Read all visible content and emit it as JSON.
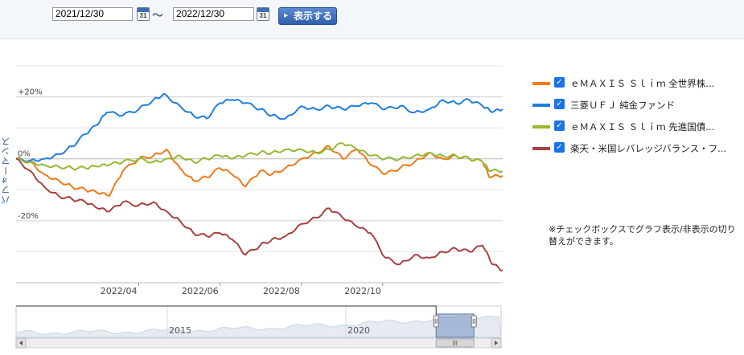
{
  "date_range": {
    "from": "2021/12/30",
    "separator": "～",
    "to": "2022/12/30",
    "calendar_day": "31",
    "show_button": "表示する"
  },
  "legend": {
    "items": [
      {
        "label": "ｅＭＡＸＩＳ Ｓｌｉｍ 全世界株...",
        "color": "#f07a1a"
      },
      {
        "label": "三菱ＵＦＪ 純金ファンド",
        "color": "#1f7ee0"
      },
      {
        "label": "ｅＭＡＸＩＳ Ｓｌｉｍ 先進国債...",
        "color": "#95b832"
      },
      {
        "label": "楽天・米国レバレッジバランス・フ...",
        "color": "#a8423f"
      }
    ]
  },
  "note": "※チェックボックスでグラフ表示/非表示の切り替えができます。",
  "navigator": {
    "year_labels": [
      "2015",
      "2020"
    ],
    "selection_start": 0.866,
    "selection_end": 0.944
  },
  "chart_data": {
    "type": "line",
    "ylabel": "パフォーマンス",
    "ylim": [
      -40,
      30
    ],
    "yticks": [
      {
        "value": 20,
        "label": "+20%"
      },
      {
        "value": 0,
        "label": "0%"
      },
      {
        "value": -20,
        "label": "-20%"
      }
    ],
    "x_start": "2021-12-30",
    "x_end": "2022-12-30",
    "xticks": [
      {
        "date": "2022-04-01",
        "label": "2022/04"
      },
      {
        "date": "2022-06-01",
        "label": "2022/06"
      },
      {
        "date": "2022-08-01",
        "label": "2022/08"
      },
      {
        "date": "2022-10-01",
        "label": "2022/10"
      }
    ],
    "grid": true,
    "legend_position": "right",
    "series": [
      {
        "name": "ｅＭＡＸＩＳ Ｓｌｉｍ 全世界株...",
        "color": "#f07a1a",
        "points": [
          [
            "2021-12-30",
            0
          ],
          [
            "2022-01-10",
            -1
          ],
          [
            "2022-01-20",
            -5
          ],
          [
            "2022-01-31",
            -7
          ],
          [
            "2022-02-10",
            -9
          ],
          [
            "2022-02-20",
            -10
          ],
          [
            "2022-03-01",
            -11
          ],
          [
            "2022-03-10",
            -12
          ],
          [
            "2022-03-20",
            -4
          ],
          [
            "2022-04-01",
            0
          ],
          [
            "2022-04-12",
            1
          ],
          [
            "2022-04-22",
            3
          ],
          [
            "2022-05-02",
            -3
          ],
          [
            "2022-05-12",
            -7
          ],
          [
            "2022-05-22",
            -6
          ],
          [
            "2022-06-01",
            -3
          ],
          [
            "2022-06-10",
            -5
          ],
          [
            "2022-06-20",
            -9
          ],
          [
            "2022-07-01",
            -4
          ],
          [
            "2022-07-10",
            -5
          ],
          [
            "2022-07-20",
            -3
          ],
          [
            "2022-08-01",
            0
          ],
          [
            "2022-08-12",
            2
          ],
          [
            "2022-08-22",
            4
          ],
          [
            "2022-09-01",
            0
          ],
          [
            "2022-09-12",
            3
          ],
          [
            "2022-09-22",
            -2
          ],
          [
            "2022-10-03",
            -5
          ],
          [
            "2022-10-14",
            -3
          ],
          [
            "2022-10-25",
            -1
          ],
          [
            "2022-11-05",
            2
          ],
          [
            "2022-11-15",
            0
          ],
          [
            "2022-11-25",
            1
          ],
          [
            "2022-12-05",
            0
          ],
          [
            "2022-12-15",
            -1
          ],
          [
            "2022-12-20",
            -6
          ],
          [
            "2022-12-30",
            -5.5
          ]
        ]
      },
      {
        "name": "三菱ＵＦＪ 純金ファンド",
        "color": "#1f7ee0",
        "points": [
          [
            "2021-12-30",
            0
          ],
          [
            "2022-01-10",
            -0.5
          ],
          [
            "2022-01-20",
            0
          ],
          [
            "2022-01-31",
            1.5
          ],
          [
            "2022-02-10",
            4
          ],
          [
            "2022-02-20",
            8
          ],
          [
            "2022-03-01",
            11
          ],
          [
            "2022-03-08",
            15
          ],
          [
            "2022-03-20",
            14
          ],
          [
            "2022-04-01",
            16
          ],
          [
            "2022-04-12",
            19
          ],
          [
            "2022-04-20",
            21
          ],
          [
            "2022-05-02",
            17
          ],
          [
            "2022-05-12",
            14
          ],
          [
            "2022-05-22",
            13
          ],
          [
            "2022-06-01",
            18
          ],
          [
            "2022-06-10",
            19
          ],
          [
            "2022-06-20",
            18
          ],
          [
            "2022-07-01",
            16
          ],
          [
            "2022-07-10",
            14
          ],
          [
            "2022-07-20",
            13
          ],
          [
            "2022-08-01",
            17
          ],
          [
            "2022-08-12",
            16
          ],
          [
            "2022-08-22",
            17
          ],
          [
            "2022-09-01",
            16
          ],
          [
            "2022-09-12",
            17
          ],
          [
            "2022-09-22",
            18
          ],
          [
            "2022-10-03",
            16
          ],
          [
            "2022-10-14",
            17
          ],
          [
            "2022-10-25",
            15
          ],
          [
            "2022-11-05",
            16
          ],
          [
            "2022-11-15",
            19
          ],
          [
            "2022-11-25",
            18
          ],
          [
            "2022-12-05",
            19
          ],
          [
            "2022-12-15",
            17
          ],
          [
            "2022-12-22",
            15
          ],
          [
            "2022-12-30",
            16
          ]
        ]
      },
      {
        "name": "ｅＭＡＸＩＳ Ｓｌｉｍ 先進国債...",
        "color": "#95b832",
        "points": [
          [
            "2021-12-30",
            0
          ],
          [
            "2022-01-10",
            -1
          ],
          [
            "2022-01-20",
            -2
          ],
          [
            "2022-01-31",
            -2.5
          ],
          [
            "2022-02-10",
            -3
          ],
          [
            "2022-02-20",
            -3
          ],
          [
            "2022-03-01",
            -2.5
          ],
          [
            "2022-03-10",
            -2
          ],
          [
            "2022-03-20",
            -1
          ],
          [
            "2022-04-01",
            0
          ],
          [
            "2022-04-12",
            -1
          ],
          [
            "2022-04-22",
            0
          ],
          [
            "2022-05-02",
            1
          ],
          [
            "2022-05-12",
            -1
          ],
          [
            "2022-05-22",
            0
          ],
          [
            "2022-06-01",
            1
          ],
          [
            "2022-06-10",
            0
          ],
          [
            "2022-06-20",
            1
          ],
          [
            "2022-07-01",
            2
          ],
          [
            "2022-07-10",
            2
          ],
          [
            "2022-07-20",
            3
          ],
          [
            "2022-08-01",
            3
          ],
          [
            "2022-08-12",
            2
          ],
          [
            "2022-08-22",
            3
          ],
          [
            "2022-09-01",
            5
          ],
          [
            "2022-09-12",
            3
          ],
          [
            "2022-09-22",
            1
          ],
          [
            "2022-10-03",
            0
          ],
          [
            "2022-10-14",
            0
          ],
          [
            "2022-10-25",
            1
          ],
          [
            "2022-11-05",
            2
          ],
          [
            "2022-11-15",
            1
          ],
          [
            "2022-11-25",
            1
          ],
          [
            "2022-12-05",
            0
          ],
          [
            "2022-12-15",
            -1
          ],
          [
            "2022-12-20",
            -4
          ],
          [
            "2022-12-30",
            -4
          ]
        ]
      },
      {
        "name": "楽天・米国レバレッジバランス・フ...",
        "color": "#a8423f",
        "points": [
          [
            "2021-12-30",
            0
          ],
          [
            "2022-01-10",
            -4
          ],
          [
            "2022-01-20",
            -9
          ],
          [
            "2022-01-31",
            -12
          ],
          [
            "2022-02-10",
            -13
          ],
          [
            "2022-02-20",
            -14
          ],
          [
            "2022-03-01",
            -16
          ],
          [
            "2022-03-10",
            -17
          ],
          [
            "2022-03-20",
            -14
          ],
          [
            "2022-04-01",
            -15
          ],
          [
            "2022-04-12",
            -14
          ],
          [
            "2022-04-22",
            -17
          ],
          [
            "2022-05-02",
            -20
          ],
          [
            "2022-05-12",
            -24
          ],
          [
            "2022-05-22",
            -25
          ],
          [
            "2022-06-01",
            -24
          ],
          [
            "2022-06-10",
            -26
          ],
          [
            "2022-06-20",
            -31
          ],
          [
            "2022-07-01",
            -28
          ],
          [
            "2022-07-10",
            -26
          ],
          [
            "2022-07-20",
            -25
          ],
          [
            "2022-08-01",
            -21
          ],
          [
            "2022-08-12",
            -19
          ],
          [
            "2022-08-22",
            -16
          ],
          [
            "2022-09-01",
            -19
          ],
          [
            "2022-09-12",
            -22
          ],
          [
            "2022-09-22",
            -24
          ],
          [
            "2022-10-03",
            -32
          ],
          [
            "2022-10-14",
            -34
          ],
          [
            "2022-10-25",
            -31
          ],
          [
            "2022-11-05",
            -32
          ],
          [
            "2022-11-15",
            -30
          ],
          [
            "2022-11-25",
            -29
          ],
          [
            "2022-12-05",
            -30
          ],
          [
            "2022-12-15",
            -28
          ],
          [
            "2022-12-22",
            -34
          ],
          [
            "2022-12-30",
            -36
          ]
        ]
      }
    ]
  }
}
